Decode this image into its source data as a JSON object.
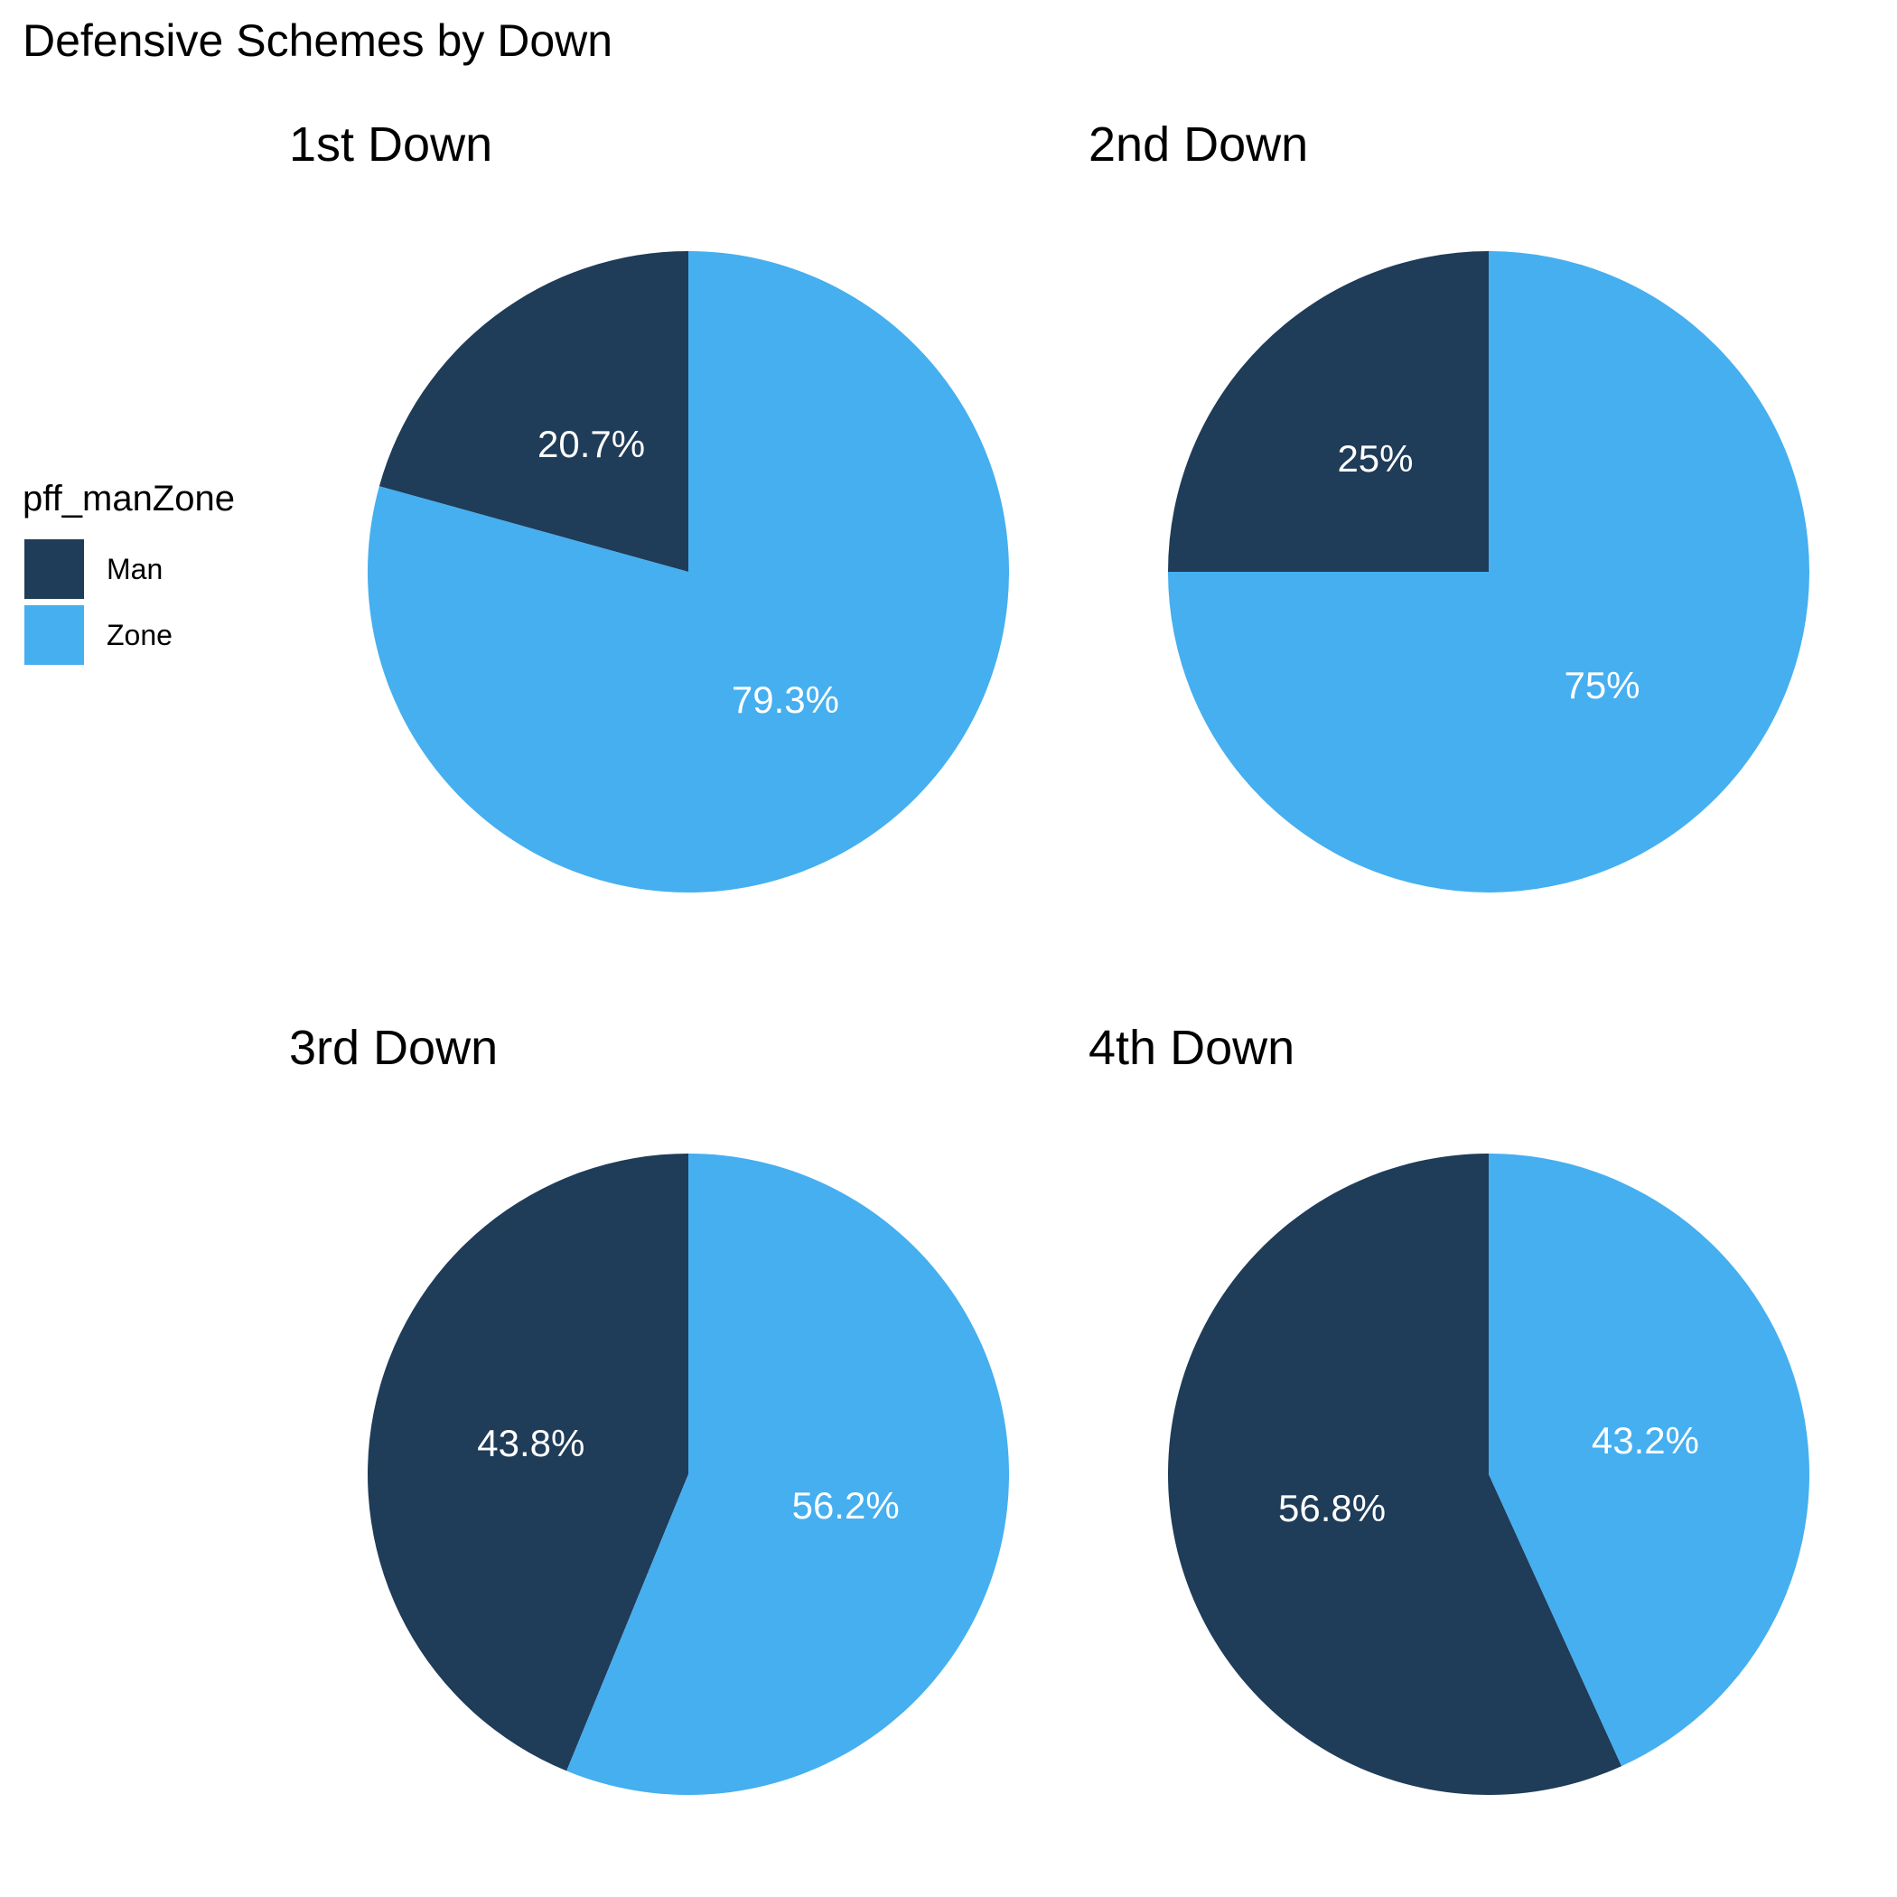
{
  "chart_data": {
    "type": "pie",
    "title": "Defensive Schemes by Down",
    "legend": {
      "title": "pff_manZone",
      "placement": "left",
      "entries": [
        {
          "name": "Man",
          "color": "#1f3c59"
        },
        {
          "name": "Zone",
          "color": "#45aff0"
        }
      ]
    },
    "panels": [
      {
        "title": "1st Down",
        "slices": [
          {
            "category": "Man",
            "value": 20.7,
            "label": "20.7%"
          },
          {
            "category": "Zone",
            "value": 79.3,
            "label": "79.3%"
          }
        ]
      },
      {
        "title": "2nd Down",
        "slices": [
          {
            "category": "Man",
            "value": 25,
            "label": "25%"
          },
          {
            "category": "Zone",
            "value": 75,
            "label": "75%"
          }
        ]
      },
      {
        "title": "3rd Down",
        "slices": [
          {
            "category": "Man",
            "value": 43.8,
            "label": "43.8%"
          },
          {
            "category": "Zone",
            "value": 56.2,
            "label": "56.2%"
          }
        ]
      },
      {
        "title": "4th Down",
        "slices": [
          {
            "category": "Man",
            "value": 56.8,
            "label": "56.8%"
          },
          {
            "category": "Zone",
            "value": 43.2,
            "label": "43.2%"
          }
        ]
      }
    ]
  }
}
